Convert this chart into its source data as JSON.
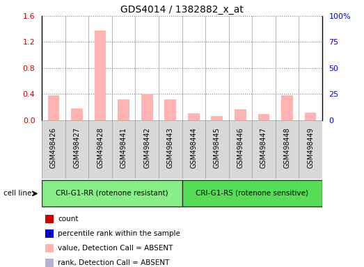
{
  "title": "GDS4014 / 1382882_x_at",
  "samples": [
    "GSM498426",
    "GSM498427",
    "GSM498428",
    "GSM498441",
    "GSM498442",
    "GSM498443",
    "GSM498444",
    "GSM498445",
    "GSM498446",
    "GSM498447",
    "GSM498448",
    "GSM498449"
  ],
  "bar_values": [
    0.38,
    0.18,
    1.38,
    0.32,
    0.4,
    0.32,
    0.1,
    0.06,
    0.17,
    0.09,
    0.38,
    0.12
  ],
  "bar_color": "#ffb3b3",
  "ylim_left": [
    0,
    1.6
  ],
  "ylim_right": [
    0,
    100
  ],
  "yticks_left": [
    0,
    0.4,
    0.8,
    1.2,
    1.6
  ],
  "yticks_right": [
    0,
    25,
    50,
    75,
    100
  ],
  "yticklabels_right": [
    "0",
    "25",
    "50",
    "75",
    "100%"
  ],
  "grid_color": "#000000",
  "group1_label": "CRI-G1-RR (rotenone resistant)",
  "group2_label": "CRI-G1-RS (rotenone sensitive)",
  "group1_color": "#88ee88",
  "group2_color": "#55dd55",
  "cell_line_label": "cell line",
  "group1_indices": [
    0,
    1,
    2,
    3,
    4,
    5
  ],
  "group2_indices": [
    6,
    7,
    8,
    9,
    10,
    11
  ],
  "legend_items": [
    {
      "label": "count",
      "color": "#cc0000"
    },
    {
      "label": "percentile rank within the sample",
      "color": "#0000cc"
    },
    {
      "label": "value, Detection Call = ABSENT",
      "color": "#ffb3b3"
    },
    {
      "label": "rank, Detection Call = ABSENT",
      "color": "#b3b3cc"
    }
  ],
  "bg_color": "#d8d8d8",
  "plot_bg": "#ffffff",
  "left_yaxis_color": "#cc0000",
  "right_yaxis_color": "#0000cc",
  "bar_width": 0.5
}
